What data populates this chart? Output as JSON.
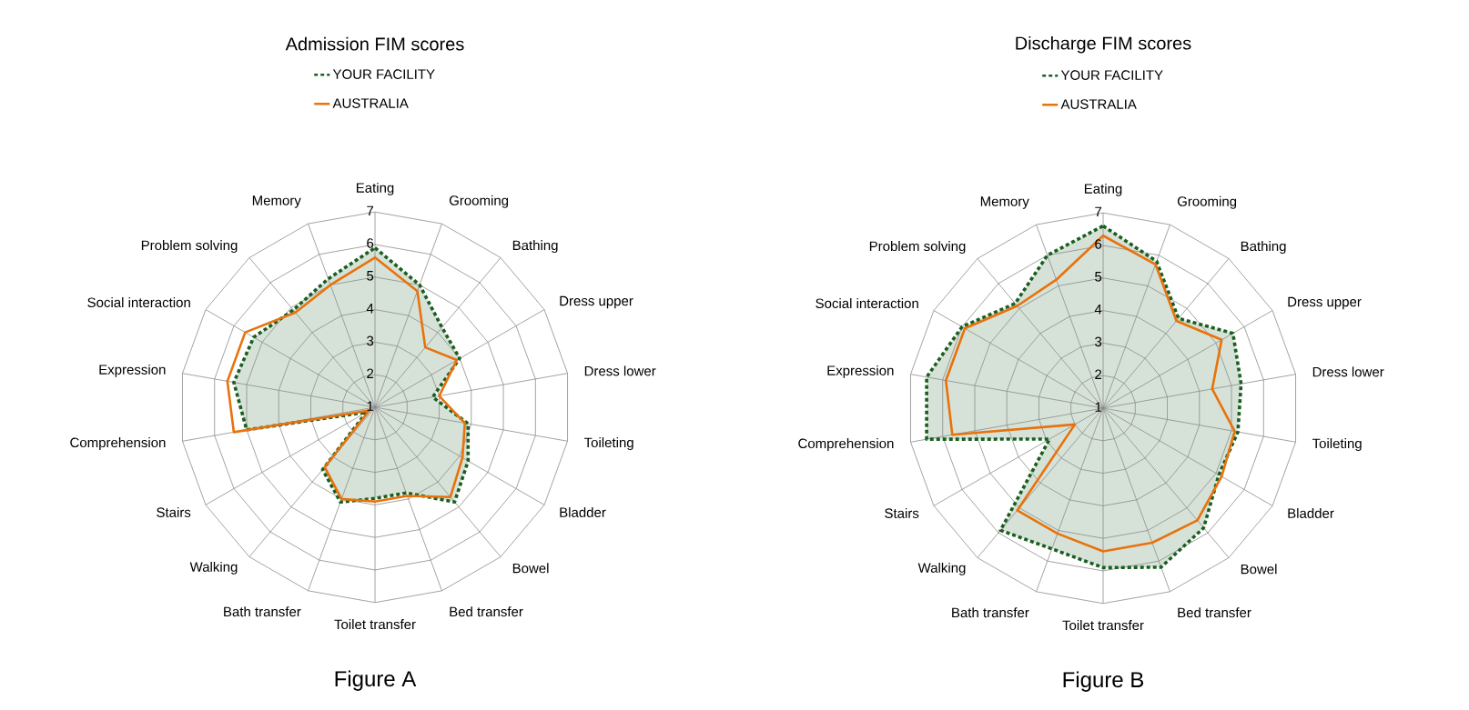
{
  "chart_data": [
    {
      "type": "radar",
      "title": "Admission FIM scores",
      "categories": [
        "Eating",
        "Grooming",
        "Bathing",
        "Dress upper",
        "Dress lower",
        "Toileting",
        "Bladder",
        "Bowel",
        "Bed transfer",
        "Toilet transfer",
        "Bath transfer",
        "Walking",
        "Stairs",
        "Comprehension",
        "Expression",
        "Social interaction",
        "Problem solving",
        "Memory"
      ],
      "series": [
        {
          "name": "YOUR FACILITY",
          "type": "area",
          "color": "#1a5e20",
          "line_style": "dotted",
          "values": [
            5.9,
            5.0,
            4.2,
            4.0,
            2.8,
            3.9,
            4.3,
            4.8,
            3.8,
            3.8,
            4.1,
            3.5,
            1.3,
            5.0,
            5.4,
            5.3,
            4.9,
            5.2
          ]
        },
        {
          "name": "AUSTRALIA",
          "color": "#e8720c",
          "line_style": "solid",
          "values": [
            5.6,
            4.8,
            3.4,
            3.9,
            3.0,
            3.8,
            4.1,
            4.6,
            3.9,
            3.9,
            4.0,
            3.4,
            1.2,
            5.4,
            5.6,
            5.6,
            4.8,
            5.0
          ]
        }
      ],
      "ylim": [
        1,
        7
      ],
      "yticks": [
        1,
        2,
        3,
        4,
        5,
        6,
        7
      ],
      "grid": true,
      "legend": "top",
      "marker": "none",
      "annotations": [
        "Figure A"
      ]
    },
    {
      "type": "radar",
      "title": "Discharge FIM scores",
      "categories": [
        "Eating",
        "Grooming",
        "Bathing",
        "Dress upper",
        "Dress lower",
        "Toileting",
        "Bladder",
        "Bowel",
        "Bed transfer",
        "Toilet transfer",
        "Bath transfer",
        "Walking",
        "Stairs",
        "Comprehension",
        "Expression",
        "Social interaction",
        "Problem solving",
        "Memory"
      ],
      "series": [
        {
          "name": "YOUR FACILITY",
          "type": "area",
          "color": "#1a5e20",
          "line_style": "dotted",
          "values": [
            6.6,
            5.8,
            4.6,
            5.6,
            5.3,
            5.2,
            5.1,
            5.8,
            6.2,
            5.9,
            5.6,
            5.9,
            2.9,
            6.5,
            6.5,
            6.0,
            5.2,
            6.0
          ]
        },
        {
          "name": "AUSTRALIA",
          "color": "#e8720c",
          "line_style": "solid",
          "values": [
            6.3,
            5.7,
            4.5,
            5.2,
            4.4,
            5.1,
            5.2,
            5.5,
            5.4,
            5.4,
            5.1,
            5.1,
            2.0,
            5.7,
            5.9,
            5.9,
            5.1,
            5.2
          ]
        }
      ],
      "ylim": [
        1,
        7
      ],
      "yticks": [
        1,
        2,
        3,
        4,
        5,
        6,
        7
      ],
      "grid": true,
      "legend": "top",
      "marker": "none",
      "annotations": [
        "Figure B"
      ]
    }
  ]
}
